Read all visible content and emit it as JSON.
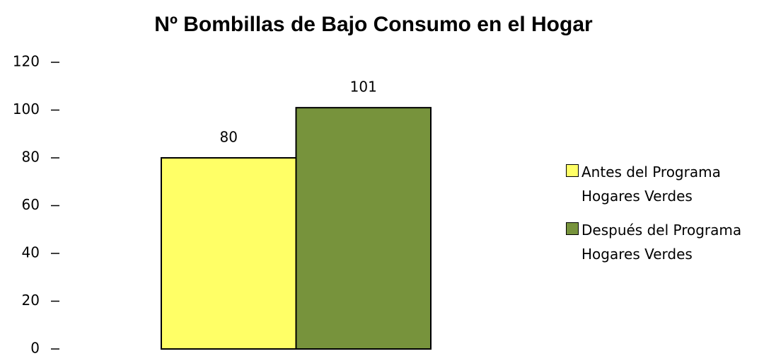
{
  "chart_data": {
    "type": "bar",
    "title": "Nº Bombillas de Bajo Consumo en el Hogar",
    "categories": [
      null
    ],
    "series": [
      {
        "name": "Antes del Programa Hogares Verdes",
        "color": "#ffff66",
        "values": [
          80
        ]
      },
      {
        "name": "Después del Programa Hogares Verdes",
        "color": "#77933c",
        "values": [
          101
        ]
      }
    ],
    "ylim": [
      0,
      120
    ],
    "yticks": [
      0,
      20,
      40,
      60,
      80,
      100,
      120
    ],
    "grid": false,
    "legend": "right"
  }
}
